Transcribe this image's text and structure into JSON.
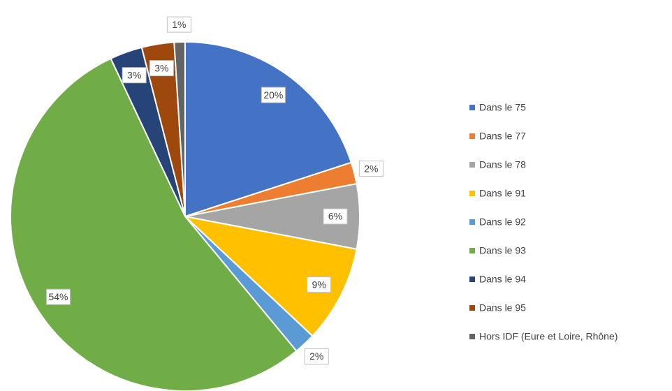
{
  "chart_data": {
    "type": "pie",
    "categories": [
      "Dans le 75",
      "Dans le 77",
      "Dans le 78",
      "Dans le 91",
      "Dans le 92",
      "Dans le 93",
      "Dans le 94",
      "Dans le 95",
      "Hors IDF (Eure et Loire, Rhône)"
    ],
    "values": [
      20,
      2,
      6,
      9,
      2,
      54,
      3,
      3,
      1
    ],
    "value_labels": [
      "20%",
      "2%",
      "6%",
      "9%",
      "2%",
      "54%",
      "3%",
      "3%",
      "1%"
    ],
    "colors": [
      "#4472c4",
      "#ed7d31",
      "#a5a5a5",
      "#ffc000",
      "#5b9bd5",
      "#70ad47",
      "#264478",
      "#9e480e",
      "#636363"
    ],
    "legend": "right"
  }
}
